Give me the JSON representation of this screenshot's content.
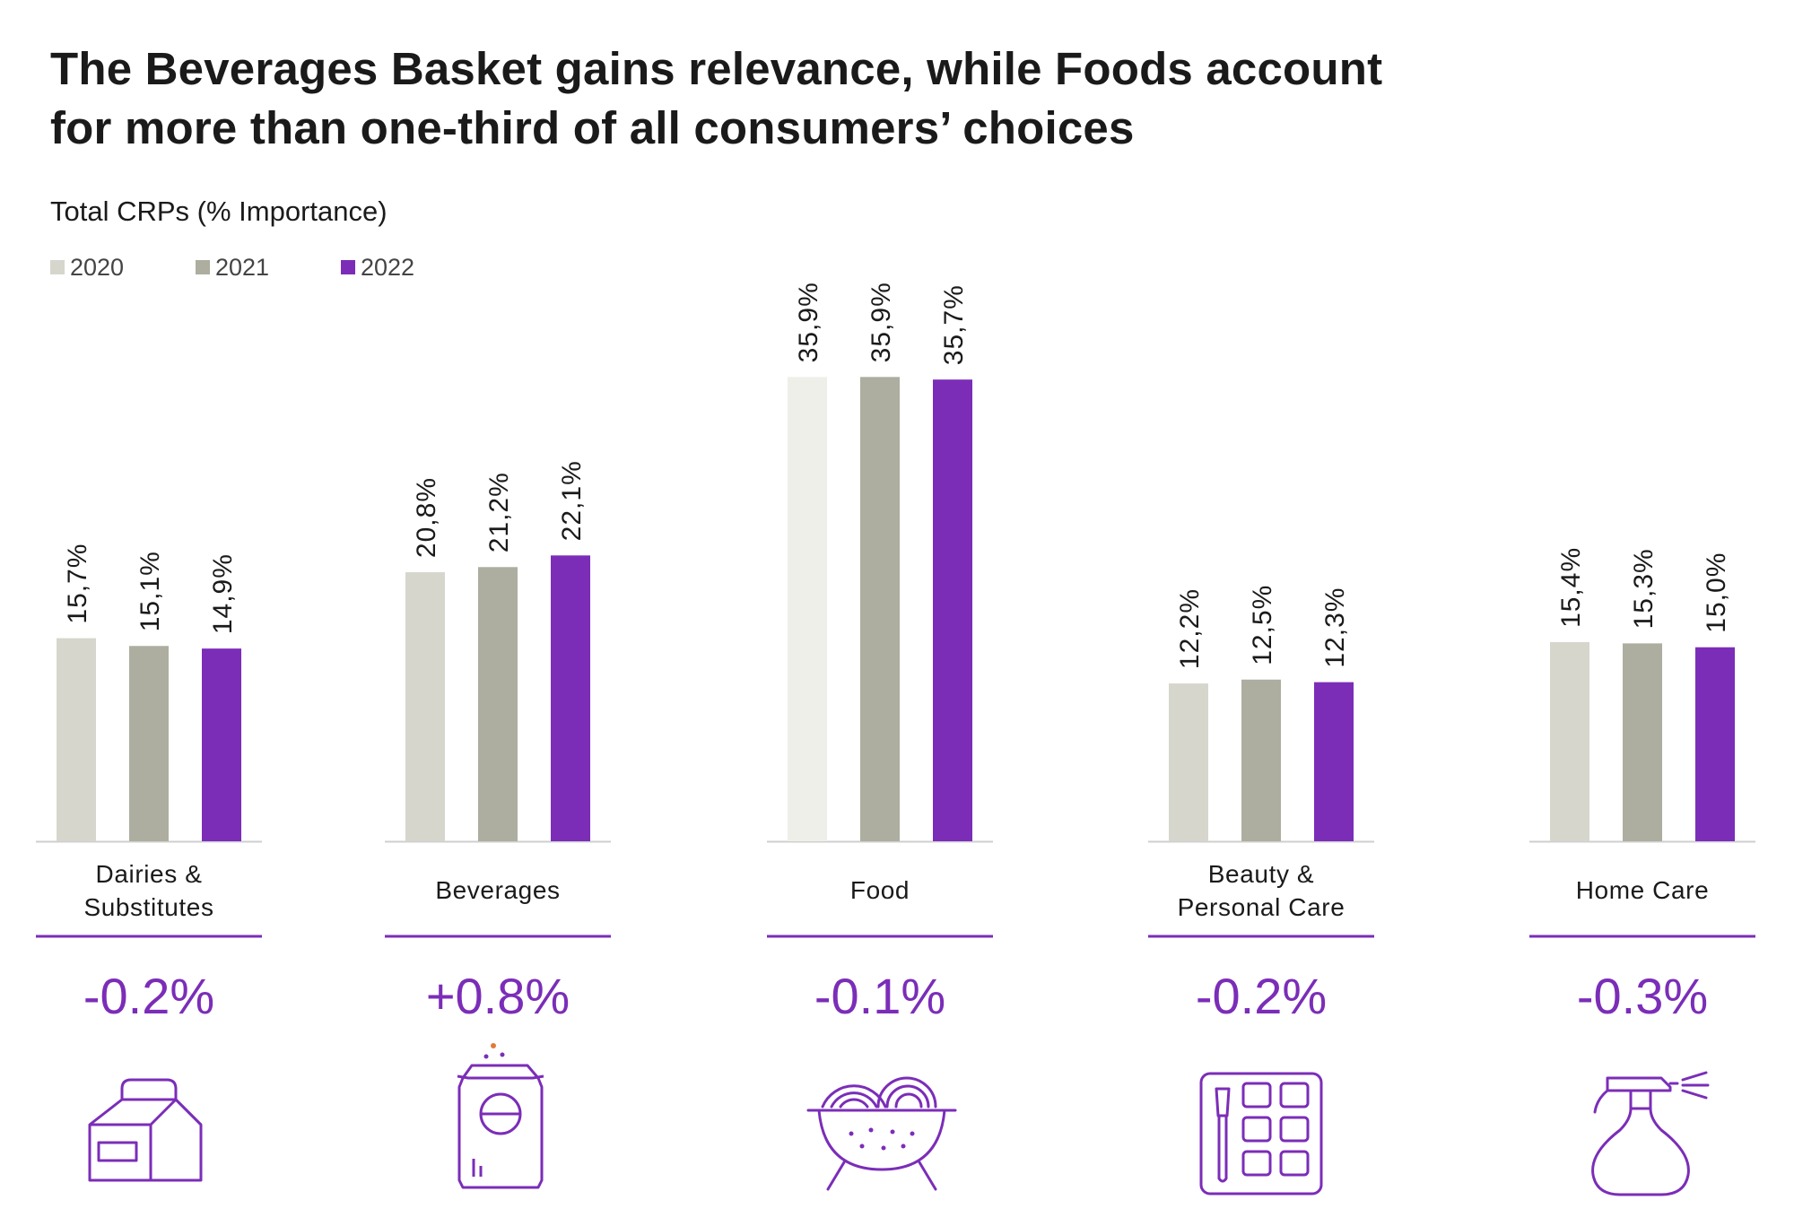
{
  "title_line1": "The Beverages Basket gains relevance, while Foods account",
  "title_line2": "for more than one-third of all consumers’ choices",
  "subtitle": "Total CRPs (% Importance)",
  "colors": {
    "accent": "#7B2DB8",
    "series_2020": "#D6D6CD",
    "series_2021": "#ADAE9F",
    "series_2022": "#7B2DB8",
    "food_2020": "#EFEFEA",
    "axis": "#cfcfcf"
  },
  "chart_data": {
    "type": "bar",
    "title": "The Beverages Basket gains relevance, while Foods account for more than one-third of all consumers’ choices",
    "subtitle": "Total CRPs (% Importance)",
    "ylabel": "",
    "ylim": [
      0,
      40
    ],
    "grid": false,
    "legend_position": "top-left",
    "categories": [
      "Dairies & Substitutes",
      "Beverages",
      "Food",
      "Beauty & Personal Care",
      "Home Care"
    ],
    "category_label_lines": [
      [
        "Dairies &",
        "Substitutes"
      ],
      [
        "Beverages"
      ],
      [
        "Food"
      ],
      [
        "Beauty &",
        "Personal Care"
      ],
      [
        "Home Care"
      ]
    ],
    "series": [
      {
        "name": "2020",
        "values": [
          15.7,
          20.8,
          35.9,
          12.2,
          15.4
        ],
        "labels": [
          "15,7%",
          "20,8%",
          "35,9%",
          "12,2%",
          "15,4%"
        ]
      },
      {
        "name": "2021",
        "values": [
          15.1,
          21.2,
          35.9,
          12.5,
          15.3
        ],
        "labels": [
          "15,1%",
          "21,2%",
          "35,9%",
          "12,5%",
          "15,3%"
        ]
      },
      {
        "name": "2022",
        "values": [
          14.9,
          22.1,
          35.7,
          12.3,
          15.0
        ],
        "labels": [
          "14,9%",
          "22,1%",
          "35,7%",
          "12,3%",
          "15,0%"
        ]
      }
    ],
    "changes": [
      "-0.2%",
      "+0.8%",
      "-0.1%",
      "-0.2%",
      "-0.3%"
    ],
    "icons": [
      "milk-carton-icon",
      "soda-can-icon",
      "food-bowl-icon",
      "makeup-palette-icon",
      "spray-bottle-icon"
    ]
  }
}
